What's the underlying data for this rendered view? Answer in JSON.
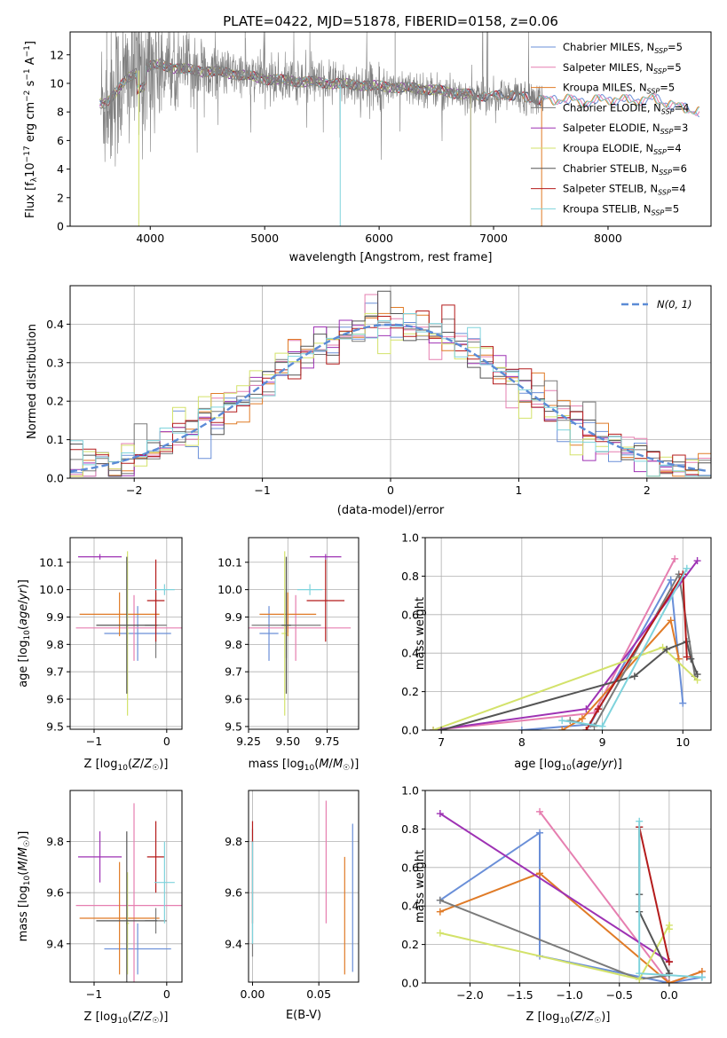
{
  "figure": {
    "title": "PLATE=0422, MJD=51878, FIBERID=0158, z=0.06"
  },
  "palette": {
    "Chabrier MILES": "#6a8fd8",
    "Salpeter MILES": "#e67fb0",
    "Kroupa MILES": "#e07b27",
    "Chabrier ELODIE": "#7a7a7a",
    "Salpeter ELODIE": "#9e32b4",
    "Kroupa ELODIE": "#d3e26a",
    "Chabrier STELIB": "#555555",
    "Salpeter STELIB": "#b41b1b",
    "Kroupa STELIB": "#7ed3dc",
    "data": "#808080"
  },
  "chart_data": [
    {
      "id": "spectrum",
      "type": "line",
      "title": "PLATE=0422, MJD=51878, FIBERID=0158, z=0.06",
      "xlabel": "wavelength [Angstrom, rest frame]",
      "ylabel": "Flux [fλ10⁻¹⁷ erg cm⁻² s⁻¹ A⁻¹]",
      "xlim": [
        3300,
        8900
      ],
      "ylim": [
        0,
        13.6
      ],
      "xticks": [
        4000,
        5000,
        6000,
        7000,
        8000
      ],
      "yticks": [
        0,
        2,
        4,
        6,
        8,
        10,
        12
      ],
      "grid": false,
      "legend_position": "top-right",
      "legend": [
        {
          "label": "Chabrier MILES, N",
          "sub": "SSP",
          "suffix": "=5",
          "key": "Chabrier MILES"
        },
        {
          "label": "Salpeter MILES, N",
          "sub": "SSP",
          "suffix": "=5",
          "key": "Salpeter MILES"
        },
        {
          "label": "Kroupa MILES, N",
          "sub": "SSP",
          "suffix": "=5",
          "key": "Kroupa MILES"
        },
        {
          "label": "Chabrier ELODIE, N",
          "sub": "SSP",
          "suffix": "=4",
          "key": "Chabrier ELODIE"
        },
        {
          "label": "Salpeter ELODIE, N",
          "sub": "SSP",
          "suffix": "=3",
          "key": "Salpeter ELODIE"
        },
        {
          "label": "Kroupa ELODIE, N",
          "sub": "SSP",
          "suffix": "=4",
          "key": "Kroupa ELODIE"
        },
        {
          "label": "Chabrier STELIB, N",
          "sub": "SSP",
          "suffix": "=6",
          "key": "Chabrier STELIB"
        },
        {
          "label": "Salpeter STELIB, N",
          "sub": "SSP",
          "suffix": "=4",
          "key": "Salpeter STELIB"
        },
        {
          "label": "Kroupa STELIB, N",
          "sub": "SSP",
          "suffix": "=5",
          "key": "Kroupa STELIB"
        }
      ],
      "continuum": {
        "x": [
          3600,
          3700,
          3800,
          3900,
          4000,
          4100,
          4200,
          4300,
          4400,
          4600,
          4800,
          5000,
          5200,
          5400,
          5600,
          5800,
          6000,
          6200,
          6400,
          6600,
          6800,
          7000,
          7200,
          7400,
          7600,
          7800,
          8000,
          8200,
          8400,
          8600,
          8800
        ],
        "y": [
          8.6,
          9.4,
          10.3,
          10.9,
          11.2,
          11.3,
          11.1,
          11.0,
          10.9,
          10.8,
          10.6,
          10.3,
          10.2,
          10.1,
          10.0,
          9.9,
          9.8,
          9.7,
          9.6,
          9.4,
          9.2,
          9.1,
          9.2,
          8.8,
          8.9,
          8.7,
          8.9,
          8.8,
          8.9,
          8.4,
          8.0
        ]
      },
      "model_ranges": [
        {
          "key": "Salpeter STELIB",
          "x": [
            3600,
            7420
          ]
        },
        {
          "key": "Chabrier STELIB",
          "x": [
            3600,
            7420
          ]
        }
      ]
    },
    {
      "id": "residuals",
      "type": "histogram",
      "xlabel": "(data-model)/error",
      "ylabel": "Normed distribution",
      "xlim": [
        -2.5,
        2.5
      ],
      "ylim": [
        0,
        0.5
      ],
      "xticks": [
        -2,
        -1,
        0,
        1,
        2
      ],
      "yticks": [
        0.0,
        0.1,
        0.2,
        0.3,
        0.4
      ],
      "grid": true,
      "legend_position": "top-right",
      "reference_label": "N(0, 1)",
      "bin_width": 0.1
    },
    {
      "id": "age-vs-Z",
      "type": "scatter",
      "xlabel": "Z [log10(Z/Z☉)]",
      "ylabel": "age [log10(age/yr)]",
      "xlim": [
        -1.33,
        0.21
      ],
      "ylim": [
        9.49,
        10.19
      ],
      "xticks": [
        -1,
        0
      ],
      "yticks": [
        9.5,
        9.6,
        9.7,
        9.8,
        9.9,
        10.0,
        10.1
      ],
      "grid": true,
      "points": [
        {
          "key": "Chabrier MILES",
          "x": -0.4,
          "y": 9.84,
          "xerr": 0.46,
          "yerr": 0.1
        },
        {
          "key": "Salpeter MILES",
          "x": -0.45,
          "y": 9.86,
          "xerr": 0.8,
          "yerr": 0.12
        },
        {
          "key": "Kroupa MILES",
          "x": -0.65,
          "y": 9.91,
          "xerr": 0.55,
          "yerr": 0.08
        },
        {
          "key": "Chabrier ELODIE",
          "x": -0.15,
          "y": 9.87,
          "xerr": 0.15,
          "yerr": 0.12
        },
        {
          "key": "Salpeter ELODIE",
          "x": -0.92,
          "y": 10.12,
          "xerr": 0.3,
          "yerr": 0.01
        },
        {
          "key": "Kroupa ELODIE",
          "x": -0.54,
          "y": 9.84,
          "xerr": 0.02,
          "yerr": 0.3
        },
        {
          "key": "Chabrier STELIB",
          "x": -0.55,
          "y": 9.87,
          "xerr": 0.42,
          "yerr": 0.25
        },
        {
          "key": "Salpeter STELIB",
          "x": -0.15,
          "y": 9.96,
          "xerr": 0.12,
          "yerr": 0.15
        },
        {
          "key": "Kroupa STELIB",
          "x": -0.03,
          "y": 10.0,
          "xerr": 0.14,
          "yerr": 0.02
        }
      ]
    },
    {
      "id": "age-vs-mass",
      "type": "scatter",
      "xlabel": "mass [log10(M/M☉)]",
      "ylabel": "",
      "xlim": [
        9.25,
        9.95
      ],
      "ylim": [
        9.49,
        10.19
      ],
      "xticks": [
        9.25,
        9.5,
        9.75
      ],
      "yticks": [
        9.5,
        9.6,
        9.7,
        9.8,
        9.9,
        10.0,
        10.1
      ],
      "grid": true,
      "points": [
        {
          "key": "Chabrier MILES",
          "x": 9.38,
          "y": 9.84,
          "xerr": 0.06,
          "yerr": 0.1
        },
        {
          "key": "Salpeter MILES",
          "x": 9.55,
          "y": 9.86,
          "xerr": 0.35,
          "yerr": 0.12
        },
        {
          "key": "Kroupa MILES",
          "x": 9.5,
          "y": 9.91,
          "xerr": 0.18,
          "yerr": 0.08
        },
        {
          "key": "Chabrier ELODIE",
          "x": 9.49,
          "y": 9.87,
          "xerr": 0.22,
          "yerr": 0.12
        },
        {
          "key": "Salpeter ELODIE",
          "x": 9.74,
          "y": 10.12,
          "xerr": 0.1,
          "yerr": 0.01
        },
        {
          "key": "Kroupa ELODIE",
          "x": 9.48,
          "y": 9.84,
          "xerr": 0.02,
          "yerr": 0.3
        },
        {
          "key": "Chabrier STELIB",
          "x": 9.49,
          "y": 9.87,
          "xerr": 0.03,
          "yerr": 0.25
        },
        {
          "key": "Salpeter STELIB",
          "x": 9.74,
          "y": 9.96,
          "xerr": 0.12,
          "yerr": 0.15
        },
        {
          "key": "Kroupa STELIB",
          "x": 9.64,
          "y": 10.0,
          "xerr": 0.08,
          "yerr": 0.02
        }
      ]
    },
    {
      "id": "weight-vs-age",
      "type": "line",
      "xlabel": "age [log10(age/yr)]",
      "ylabel": "mass weight",
      "xlim": [
        6.8,
        10.35
      ],
      "ylim": [
        0,
        1
      ],
      "xticks": [
        7,
        8,
        9,
        10
      ],
      "yticks": [
        0.0,
        0.2,
        0.4,
        0.6,
        0.8,
        1.0
      ],
      "grid": true,
      "series": [
        {
          "key": "Chabrier MILES",
          "x": [
            8.0,
            8.85,
            9.85,
            10.0
          ],
          "y": [
            0.0,
            0.03,
            0.78,
            0.14
          ]
        },
        {
          "key": "Salpeter MILES",
          "x": [
            6.9,
            8.9,
            9.9
          ],
          "y": [
            0.0,
            0.09,
            0.89
          ]
        },
        {
          "key": "Kroupa MILES",
          "x": [
            8.5,
            8.75,
            9.85,
            9.95
          ],
          "y": [
            0.0,
            0.06,
            0.57,
            0.37
          ]
        },
        {
          "key": "Chabrier ELODIE",
          "x": [
            8.6,
            8.9,
            9.95,
            10.15
          ],
          "y": [
            0.05,
            0.02,
            0.81,
            0.28
          ]
        },
        {
          "key": "Salpeter ELODIE",
          "x": [
            6.9,
            8.8,
            10.18
          ],
          "y": [
            0.0,
            0.11,
            0.88
          ]
        },
        {
          "key": "Kroupa ELODIE",
          "x": [
            6.9,
            9.75,
            10.18
          ],
          "y": [
            0.0,
            0.43,
            0.26
          ]
        },
        {
          "key": "Chabrier STELIB",
          "x": [
            7.0,
            9.4,
            9.8,
            10.05,
            10.1,
            10.18
          ],
          "y": [
            0.0,
            0.28,
            0.42,
            0.46,
            0.37,
            0.29
          ]
        },
        {
          "key": "Salpeter STELIB",
          "x": [
            8.8,
            8.95,
            10.0,
            10.05
          ],
          "y": [
            0.0,
            0.11,
            0.81,
            0.38
          ]
        },
        {
          "key": "Kroupa STELIB",
          "x": [
            8.5,
            9.0,
            10.05
          ],
          "y": [
            0.05,
            0.02,
            0.84
          ]
        }
      ]
    },
    {
      "id": "mass-vs-Z",
      "type": "scatter",
      "xlabel": "Z [log10(Z/Z☉)]",
      "ylabel": "mass [log10(M/M☉)]",
      "xlim": [
        -1.33,
        0.21
      ],
      "ylim": [
        9.25,
        10.0
      ],
      "xticks": [
        -1,
        0
      ],
      "yticks": [
        9.4,
        9.6,
        9.8
      ],
      "grid": true,
      "points": [
        {
          "key": "Chabrier MILES",
          "x": -0.4,
          "y": 9.38,
          "xerr": 0.46,
          "yerr": 0.1
        },
        {
          "key": "Salpeter MILES",
          "x": -0.45,
          "y": 9.55,
          "xerr": 0.8,
          "yerr": 0.4
        },
        {
          "key": "Kroupa MILES",
          "x": -0.65,
          "y": 9.5,
          "xerr": 0.55,
          "yerr": 0.22
        },
        {
          "key": "Chabrier ELODIE",
          "x": -0.15,
          "y": 9.49,
          "xerr": 0.15,
          "yerr": 0.05
        },
        {
          "key": "Salpeter ELODIE",
          "x": -0.92,
          "y": 9.74,
          "xerr": 0.3,
          "yerr": 0.1
        },
        {
          "key": "Kroupa ELODIE",
          "x": -0.54,
          "y": 9.48,
          "xerr": 0.02,
          "yerr": 0.2
        },
        {
          "key": "Chabrier STELIB",
          "x": -0.55,
          "y": 9.49,
          "xerr": 0.42,
          "yerr": 0.35
        },
        {
          "key": "Salpeter STELIB",
          "x": -0.15,
          "y": 9.74,
          "xerr": 0.12,
          "yerr": 0.14
        },
        {
          "key": "Kroupa STELIB",
          "x": -0.03,
          "y": 9.64,
          "xerr": 0.14,
          "yerr": 0.16
        }
      ]
    },
    {
      "id": "mass-vs-ebv",
      "type": "scatter",
      "xlabel": "E(B-V)",
      "ylabel": "",
      "xlim": [
        -0.003,
        0.08
      ],
      "ylim": [
        9.25,
        10.0
      ],
      "xticks": [
        0.0,
        0.05
      ],
      "yticks": [
        9.4,
        9.6,
        9.8
      ],
      "grid": true,
      "points": [
        {
          "key": "Chabrier MILES",
          "x": 0.0755,
          "y": 9.58,
          "xerr": 0,
          "yerr": 0.29
        },
        {
          "key": "Salpeter MILES",
          "x": 0.0555,
          "y": 9.72,
          "xerr": 0,
          "yerr": 0.24
        },
        {
          "key": "Kroupa MILES",
          "x": 0.0695,
          "y": 9.51,
          "xerr": 0,
          "yerr": 0.23
        },
        {
          "key": "Chabrier ELODIE",
          "x": 0.0,
          "y": 9.6,
          "xerr": 0,
          "yerr": 0.25
        },
        {
          "key": "Salpeter STELIB",
          "x": 0.0,
          "y": 9.68,
          "xerr": 0,
          "yerr": 0.2
        },
        {
          "key": "Kroupa STELIB",
          "x": 0.0,
          "y": 9.6,
          "xerr": 0,
          "yerr": 0.2
        }
      ]
    },
    {
      "id": "weight-vs-Z",
      "type": "line",
      "xlabel": "Z [log10(Z/Z☉)]",
      "ylabel": "mass weight",
      "xlim": [
        -2.45,
        0.42
      ],
      "ylim": [
        0,
        1
      ],
      "xticks": [
        -2.0,
        -1.5,
        -1.0,
        -0.5,
        0.0
      ],
      "yticks": [
        0.0,
        0.2,
        0.4,
        0.6,
        0.8,
        1.0
      ],
      "grid": true,
      "series": [
        {
          "key": "Chabrier MILES",
          "x": [
            -2.3,
            -1.3,
            -1.3,
            0.0,
            0.33
          ],
          "y": [
            0.43,
            0.78,
            0.14,
            0.0,
            0.03
          ]
        },
        {
          "key": "Salpeter MILES",
          "x": [
            -1.3,
            0.0,
            0.33
          ],
          "y": [
            0.89,
            0.0,
            0.06
          ]
        },
        {
          "key": "Kroupa MILES",
          "x": [
            -2.3,
            -1.3,
            0.0,
            0.33
          ],
          "y": [
            0.37,
            0.57,
            0.0,
            0.06
          ]
        },
        {
          "key": "Chabrier ELODIE",
          "x": [
            -2.3,
            -0.3,
            0.0
          ],
          "y": [
            0.43,
            0.02,
            0.04
          ]
        },
        {
          "key": "Salpeter ELODIE",
          "x": [
            -2.3,
            0.0
          ],
          "y": [
            0.88,
            0.11
          ]
        },
        {
          "key": "Kroupa ELODIE",
          "x": [
            -2.3,
            -0.3,
            0.0,
            0.0
          ],
          "y": [
            0.26,
            0.02,
            0.3,
            0.28
          ]
        },
        {
          "key": "Chabrier STELIB",
          "x": [
            -0.3,
            -0.3,
            -0.3,
            0.0
          ],
          "y": [
            0.81,
            0.46,
            0.37,
            0.05
          ]
        },
        {
          "key": "Salpeter STELIB",
          "x": [
            -0.3,
            0.0,
            0.0
          ],
          "y": [
            0.81,
            0.11,
            0.11
          ]
        },
        {
          "key": "Kroupa STELIB",
          "x": [
            -0.3,
            -0.3,
            0.33
          ],
          "y": [
            0.84,
            0.05,
            0.03
          ]
        }
      ]
    }
  ]
}
